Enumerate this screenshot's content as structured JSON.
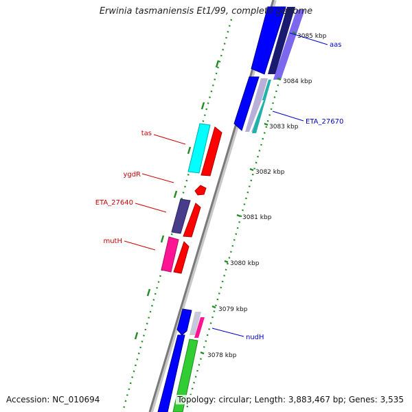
{
  "title": "Erwinia tasmaniensis Et1/99, complete genome",
  "accession_text": "Accession: NC_010694",
  "summary_text": "Topology: circular; Length: 3,883,467 bp; Genes: 3,535",
  "colors": {
    "backbone": "#888888",
    "tick": "#228b22",
    "forward_label": "#0000cc",
    "reverse_label": "#cc0000",
    "blue_gene": "#0000ff",
    "red_gene": "#ff0000",
    "cyan_gene": "#00ffff",
    "magenta_gene": "#ff1493",
    "slate_gene": "#483d8b",
    "green_gene": "#32cd32"
  },
  "scale": {
    "unit": "kbp",
    "ticks": [
      "3085 kbp",
      "3084 kbp",
      "3083 kbp",
      "3082 kbp",
      "3081 kbp",
      "3080 kbp",
      "3079 kbp",
      "3078 kbp"
    ]
  },
  "genes": [
    {
      "name": "aas",
      "strand": "forward"
    },
    {
      "name": "ETA_27670",
      "strand": "forward"
    },
    {
      "name": "nudH",
      "strand": "forward"
    },
    {
      "name": "tas",
      "strand": "reverse"
    },
    {
      "name": "ygdR",
      "strand": "reverse"
    },
    {
      "name": "ETA_27640",
      "strand": "reverse"
    },
    {
      "name": "mutH",
      "strand": "reverse"
    }
  ]
}
